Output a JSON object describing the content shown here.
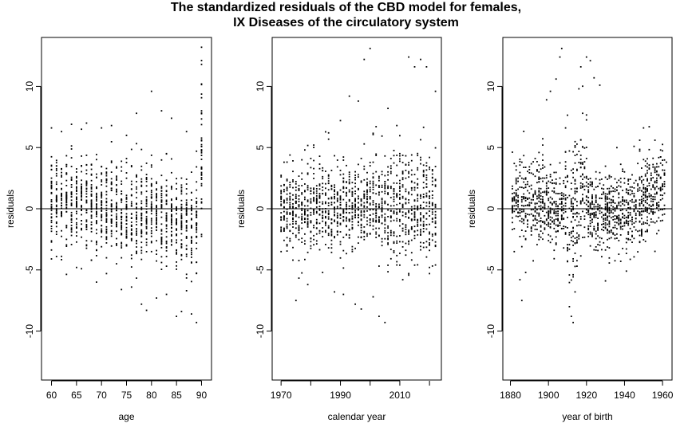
{
  "title": {
    "line1": "The standardized residuals of the CBD model for females,",
    "line2": "IX Diseases of the circulatory system"
  },
  "chart_data": [
    {
      "type": "scatter",
      "title": "",
      "xlabel": "age",
      "ylabel": "residuals",
      "xlim": [
        58,
        92
      ],
      "ylim": [
        -14,
        14
      ],
      "xticks": [
        "60",
        "65",
        "70",
        "75",
        "80",
        "85",
        "90"
      ],
      "yticks": [
        "-10",
        "-5",
        "0",
        "5",
        "10"
      ],
      "reference_line_y": 0,
      "description": "Residuals by age 60-90; spread roughly -9 to 7, heavy cluster near 0, large positive outliers up to 13 at age 90",
      "sample_points": [
        [
          60,
          -4.1
        ],
        [
          60,
          6.6
        ],
        [
          61,
          -3.9
        ],
        [
          62,
          6.3
        ],
        [
          63,
          -2.5
        ],
        [
          64,
          6.9
        ],
        [
          65,
          -4.8
        ],
        [
          66,
          6.5
        ],
        [
          67,
          7.0
        ],
        [
          68,
          -4.2
        ],
        [
          69,
          -6.0
        ],
        [
          70,
          6.6
        ],
        [
          71,
          -5.3
        ],
        [
          72,
          6.8
        ],
        [
          73,
          -4.5
        ],
        [
          74,
          -6.6
        ],
        [
          75,
          6.0
        ],
        [
          76,
          -6.4
        ],
        [
          77,
          7.8
        ],
        [
          78,
          -7.8
        ],
        [
          79,
          -8.3
        ],
        [
          80,
          9.6
        ],
        [
          81,
          -7.3
        ],
        [
          82,
          8.0
        ],
        [
          83,
          -7.0
        ],
        [
          84,
          7.4
        ],
        [
          85,
          -8.8
        ],
        [
          86,
          -8.4
        ],
        [
          87,
          6.3
        ],
        [
          88,
          -8.6
        ],
        [
          89,
          -9.3
        ],
        [
          90,
          13.2
        ],
        [
          90,
          11.8
        ],
        [
          90,
          10.2
        ],
        [
          90,
          8.0
        ],
        [
          90,
          3.4
        ],
        [
          90,
          -2.1
        ]
      ]
    },
    {
      "type": "scatter",
      "title": "",
      "xlabel": "calendar year",
      "ylabel": "residuals",
      "xlim": [
        1967,
        2024
      ],
      "ylim": [
        -14,
        14
      ],
      "xticks": [
        "1970",
        "1990",
        "2010"
      ],
      "yticks": [
        "-10",
        "-5",
        "0",
        "5",
        "10"
      ],
      "reference_line_y": 0,
      "description": "Residuals by calendar year 1970-2022; outliers up to 13 around 2000 and 2014, down to -9 around 2006",
      "sample_points": [
        [
          1970,
          -3.5
        ],
        [
          1971,
          3.8
        ],
        [
          1974,
          -4.2
        ],
        [
          1975,
          -7.5
        ],
        [
          1977,
          4.0
        ],
        [
          1979,
          -6.2
        ],
        [
          1981,
          5.2
        ],
        [
          1984,
          -5.2
        ],
        [
          1986,
          6.2
        ],
        [
          1988,
          -6.8
        ],
        [
          1990,
          7.2
        ],
        [
          1991,
          -7.0
        ],
        [
          1993,
          9.2
        ],
        [
          1995,
          -7.8
        ],
        [
          1996,
          8.8
        ],
        [
          1997,
          -8.2
        ],
        [
          1998,
          12.2
        ],
        [
          2000,
          13.1
        ],
        [
          2001,
          -7.2
        ],
        [
          2003,
          -8.8
        ],
        [
          2005,
          -9.3
        ],
        [
          2006,
          8.2
        ],
        [
          2009,
          6.8
        ],
        [
          2011,
          -5.8
        ],
        [
          2013,
          12.4
        ],
        [
          2015,
          11.6
        ],
        [
          2017,
          12.2
        ],
        [
          2019,
          11.6
        ],
        [
          2020,
          -4.8
        ],
        [
          2022,
          9.6
        ],
        [
          2022,
          -4.6
        ]
      ]
    },
    {
      "type": "scatter",
      "title": "",
      "xlabel": "year of birth",
      "ylabel": "residuals",
      "xlim": [
        1876,
        1965
      ],
      "ylim": [
        -14,
        14
      ],
      "xticks": [
        "1880",
        "1900",
        "1920",
        "1940",
        "1960"
      ],
      "yticks": [
        "-10",
        "-5",
        "0",
        "5",
        "10"
      ],
      "reference_line_y": 0,
      "description": "Residuals by year of birth 1880-1962; diagonal cohort bands, large outliers near cohorts 1905-1915 and 1918-1920, rising trend for cohorts after 1945",
      "sample_points": [
        [
          1882,
          -3.5
        ],
        [
          1885,
          -5.8
        ],
        [
          1886,
          -7.5
        ],
        [
          1888,
          -5.2
        ],
        [
          1890,
          3.2
        ],
        [
          1893,
          4.1
        ],
        [
          1895,
          4.6
        ],
        [
          1897,
          5.2
        ],
        [
          1899,
          8.9
        ],
        [
          1901,
          9.6
        ],
        [
          1904,
          10.6
        ],
        [
          1906,
          12.4
        ],
        [
          1907,
          13.1
        ],
        [
          1909,
          6.6
        ],
        [
          1911,
          -8.0
        ],
        [
          1912,
          -8.8
        ],
        [
          1913,
          -9.3
        ],
        [
          1914,
          -6.8
        ],
        [
          1916,
          9.8
        ],
        [
          1917,
          11.6
        ],
        [
          1918,
          7.8
        ],
        [
          1920,
          12.4
        ],
        [
          1922,
          12.1
        ],
        [
          1924,
          10.7
        ],
        [
          1927,
          10.1
        ],
        [
          1930,
          -5.9
        ],
        [
          1938,
          -4.3
        ],
        [
          1941,
          -5.1
        ],
        [
          1945,
          5.1
        ],
        [
          1948,
          5.6
        ],
        [
          1950,
          6.6
        ],
        [
          1953,
          6.7
        ],
        [
          1956,
          5.6
        ],
        [
          1959,
          4.8
        ],
        [
          1962,
          3.8
        ]
      ]
    }
  ]
}
